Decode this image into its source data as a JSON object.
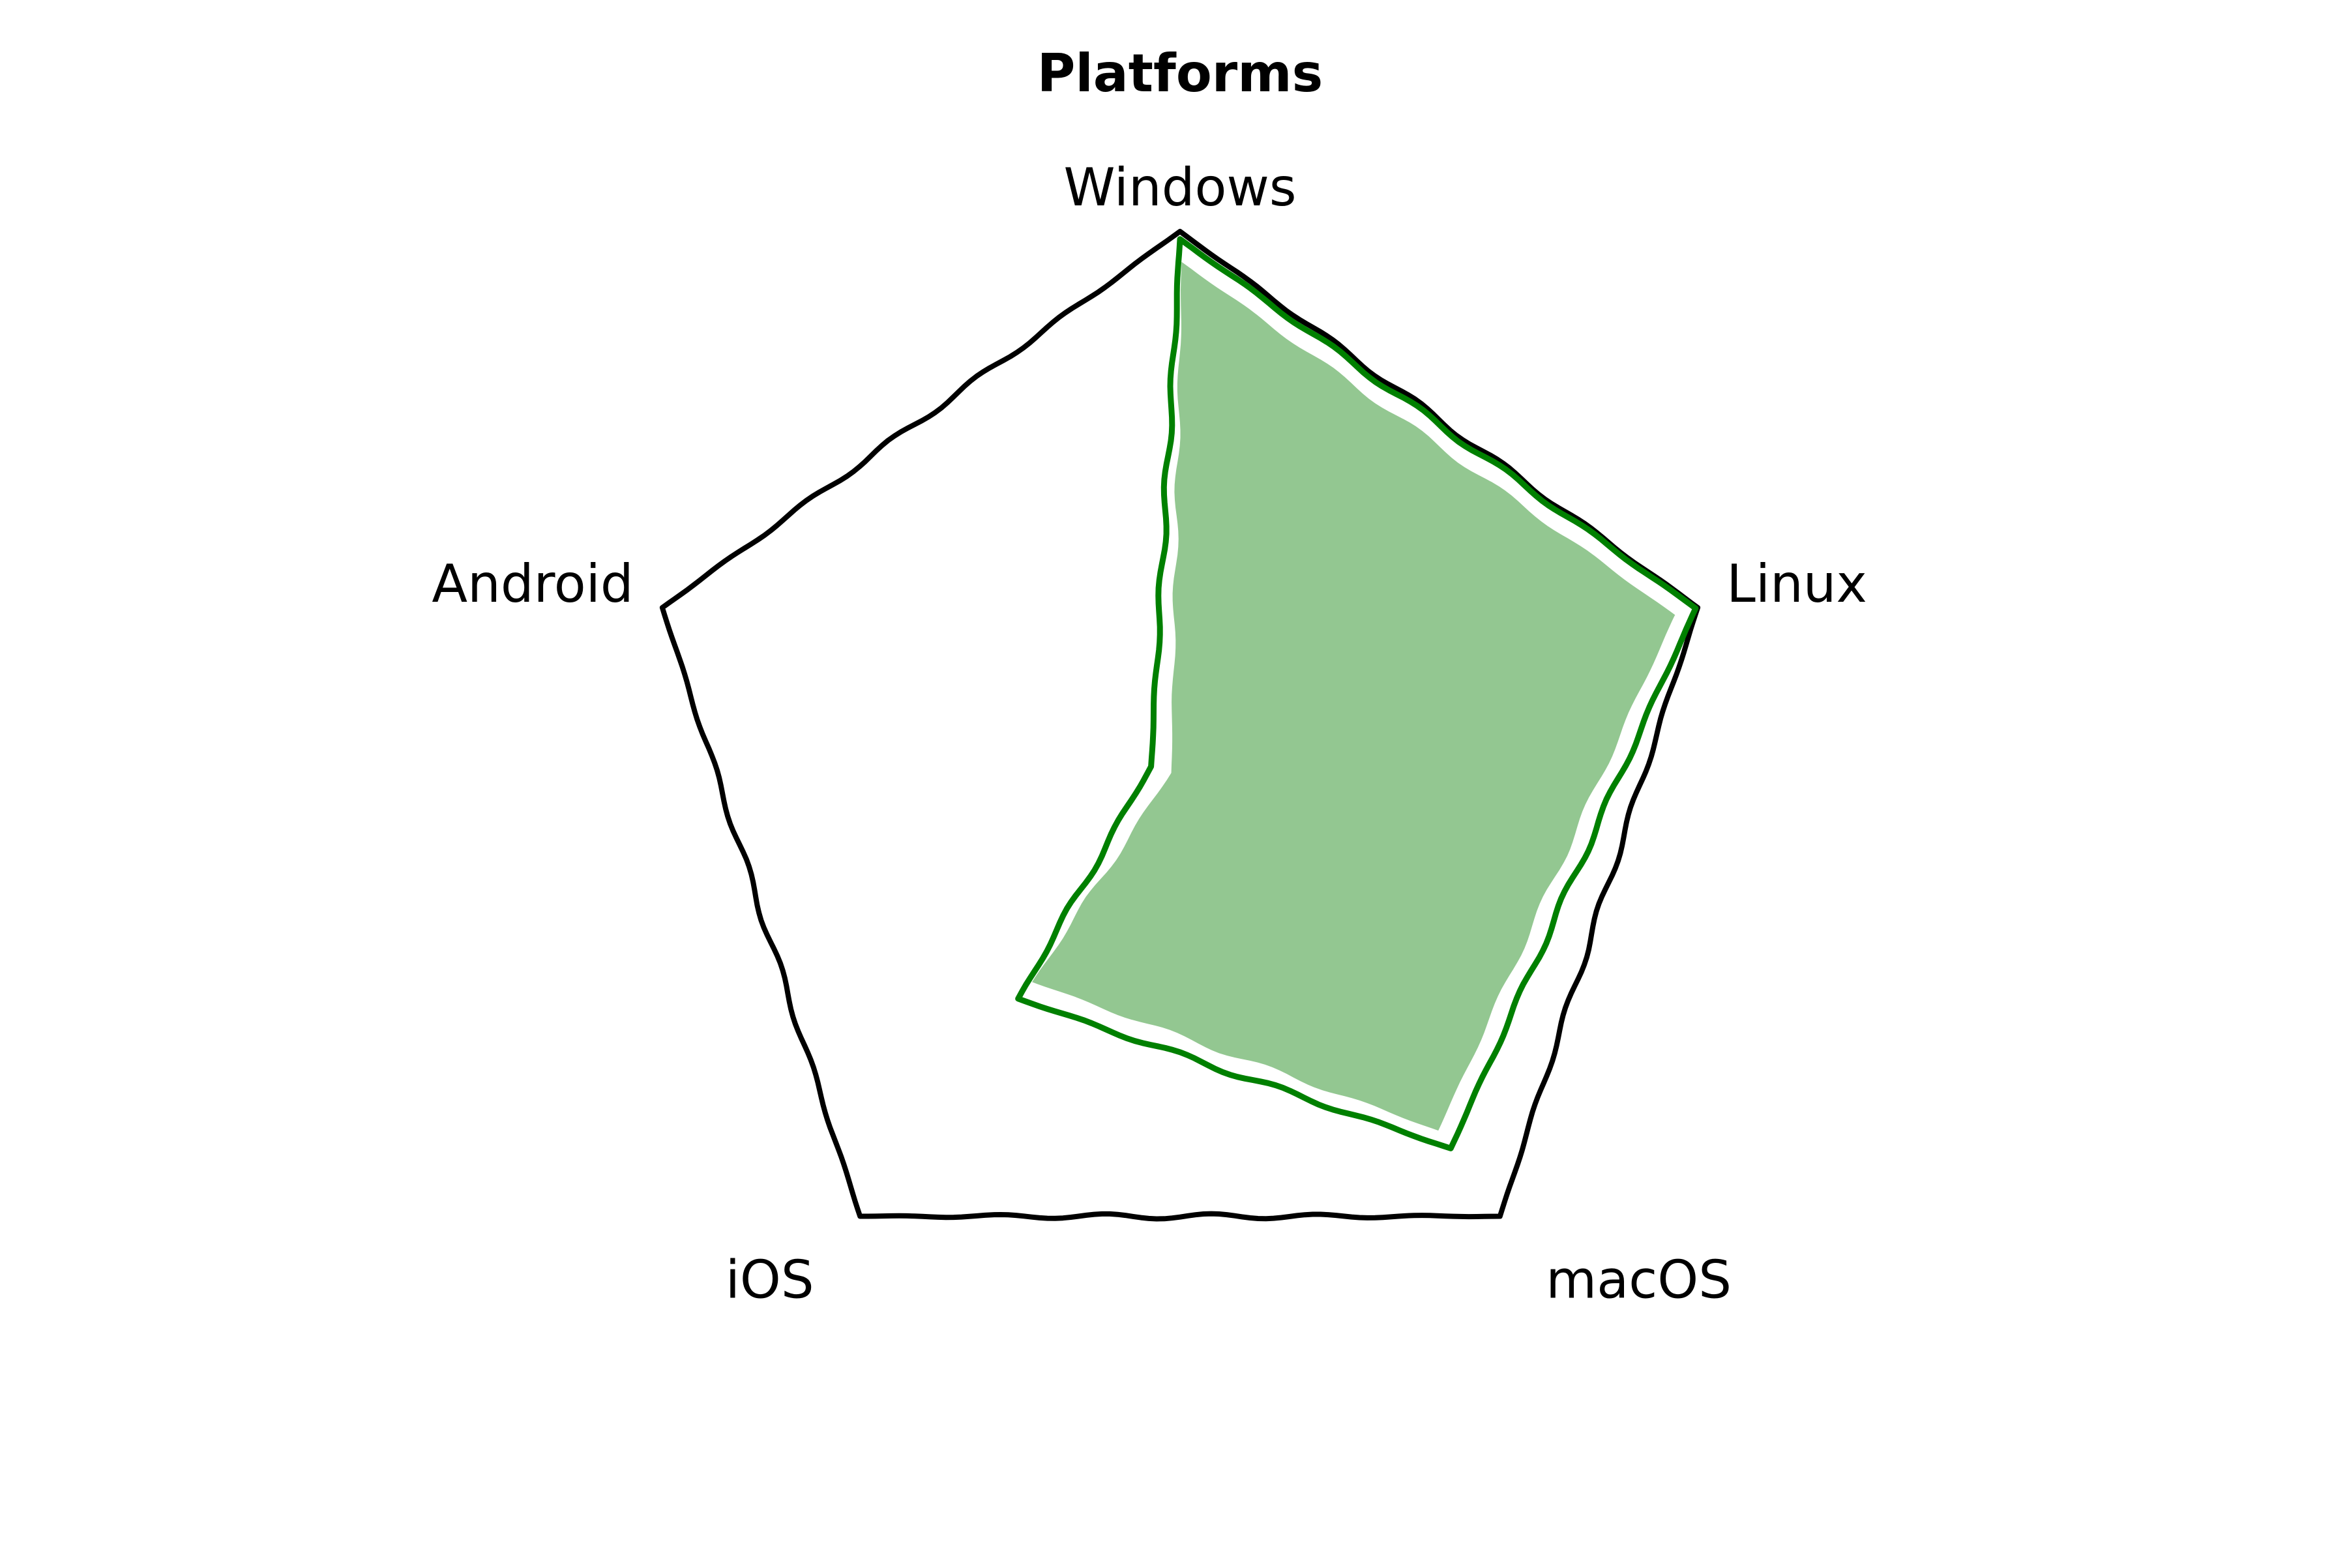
{
  "chart_data": {
    "type": "radar",
    "title": "Platforms",
    "categories": [
      "Windows",
      "Linux",
      "macOS",
      "iOS",
      "Android"
    ],
    "series": [
      {
        "values": [
          0.95,
          0.96,
          0.81,
          0.47,
          0.02
        ]
      }
    ],
    "rlim": [
      0,
      1
    ],
    "grid": false,
    "frame_style": "hand-drawn (xkcd)",
    "colors": {
      "series": "#008000",
      "fill": "#93c791",
      "frame": "#000000"
    }
  }
}
